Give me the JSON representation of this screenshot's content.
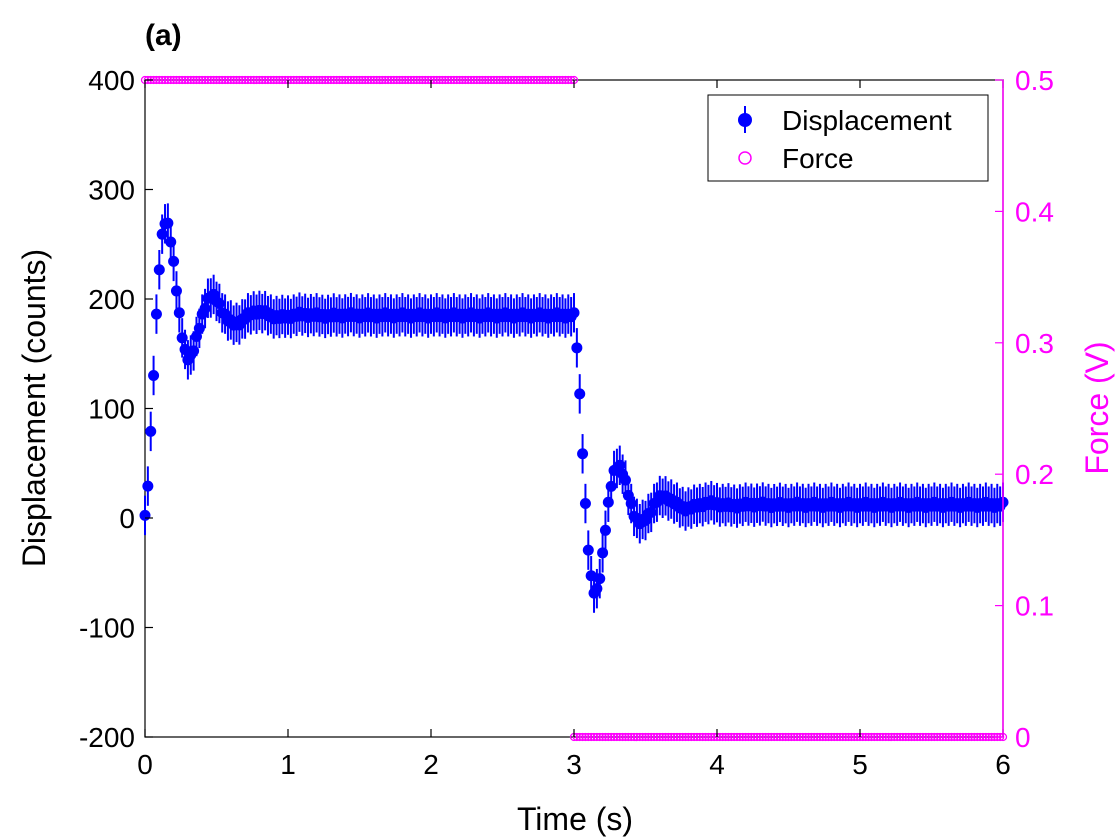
{
  "chart_data": {
    "type": "scatter",
    "panel_label": "(a)",
    "xlabel": "Time (s)",
    "ylabel_left": "Displacement (counts)",
    "ylabel_right": "Force (V)",
    "xlim": [
      0,
      6
    ],
    "ylim_left": [
      -200,
      400
    ],
    "ylim_right": [
      0,
      0.5
    ],
    "x_ticks": [
      "0",
      "1",
      "2",
      "3",
      "4",
      "5",
      "6"
    ],
    "y_left_ticks": [
      "-200",
      "-100",
      "0",
      "100",
      "200",
      "300",
      "400"
    ],
    "y_right_ticks": [
      "0",
      "0.1",
      "0.2",
      "0.3",
      "0.4",
      "0.5"
    ],
    "grid": false,
    "legend_position": "top-right",
    "sample_interval_s": 0.02,
    "series": [
      {
        "name": "Displacement",
        "axis": "left",
        "marker": "filled-circle-with-errorbar",
        "color": "#0000ff",
        "segments": [
          {
            "t_start": 0,
            "t_end": 3.0,
            "initial": 0,
            "final": 185,
            "peak_time": 0.18,
            "period": 0.32,
            "decay": 0.2,
            "error": 18
          },
          {
            "t_start": 3.0,
            "t_end": 6.0,
            "initial": 185,
            "final": 12,
            "peak_time": 0.18,
            "period": 0.32,
            "decay": 0.2,
            "error": 18
          }
        ],
        "noise_amplitude": 20
      },
      {
        "name": "Force",
        "axis": "right",
        "marker": "open-circle",
        "color": "#ff00ff",
        "levels": [
          {
            "t_start": 0,
            "t_end": 3.0,
            "value": 0.5
          },
          {
            "t_start": 3.0,
            "t_end": 6.0,
            "value": 0
          }
        ]
      }
    ]
  }
}
